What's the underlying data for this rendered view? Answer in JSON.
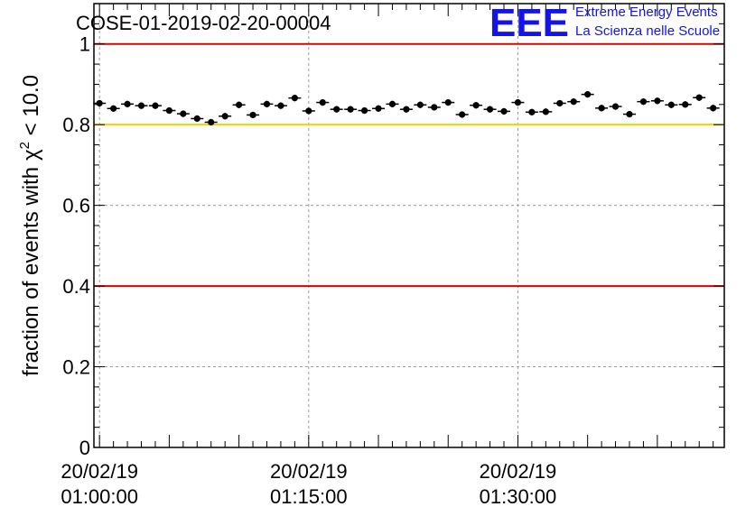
{
  "chart_data": {
    "type": "scatter",
    "title": "COSE-01-2019-02-20-00004",
    "ylabel": "fraction of events with",
    "ylabel_chi": "χ",
    "ylabel_sup": "2",
    "ylabel_tail": " < 10.0",
    "xlabel": "",
    "ylim": [
      0,
      1.1
    ],
    "xlim_minutes": [
      -0.4,
      44.8
    ],
    "y_ticks": [
      "0",
      "0.2",
      "0.4",
      "0.6",
      "0.8",
      "1"
    ],
    "y_tick_values": [
      0,
      0.2,
      0.4,
      0.6,
      0.8,
      1.0
    ],
    "x_ticks": [
      {
        "minute": 0,
        "date": "20/02/19",
        "time": "01:00:00"
      },
      {
        "minute": 15,
        "date": "20/02/19",
        "time": "01:15:00"
      },
      {
        "minute": 30,
        "date": "20/02/19",
        "time": "01:30:00"
      }
    ],
    "reference_lines": [
      {
        "value": 1.0,
        "color": "#dd0000"
      },
      {
        "value": 0.8,
        "color": "#ffcc00"
      },
      {
        "value": 0.4,
        "color": "#dd0000"
      }
    ],
    "grid": true,
    "series": [
      {
        "name": "fraction",
        "color": "#000000",
        "x_minutes": [
          0,
          1,
          2,
          3,
          4,
          5,
          6,
          7,
          8,
          9,
          10,
          11,
          12,
          13,
          14,
          15,
          16,
          17,
          18,
          19,
          20,
          21,
          22,
          23,
          24,
          25,
          26,
          27,
          28,
          29,
          30,
          31,
          32,
          33,
          34,
          35,
          36,
          37,
          38,
          39,
          40,
          41,
          42,
          43,
          44
        ],
        "values": [
          0.853,
          0.84,
          0.851,
          0.847,
          0.847,
          0.835,
          0.827,
          0.815,
          0.806,
          0.821,
          0.849,
          0.824,
          0.851,
          0.847,
          0.866,
          0.834,
          0.855,
          0.838,
          0.838,
          0.835,
          0.84,
          0.851,
          0.838,
          0.849,
          0.843,
          0.855,
          0.825,
          0.848,
          0.838,
          0.833,
          0.855,
          0.831,
          0.832,
          0.853,
          0.857,
          0.875,
          0.841,
          0.845,
          0.826,
          0.857,
          0.859,
          0.849,
          0.85,
          0.867,
          0.841
        ],
        "error": 0.008
      }
    ]
  },
  "logo": {
    "mark": "EEE",
    "line1": "Extreme Energy Events",
    "line2": "La Scienza nelle Scuole"
  },
  "colors": {
    "frame": "#000000",
    "grid": "#9a9a9a",
    "logo": "#1414e6"
  }
}
